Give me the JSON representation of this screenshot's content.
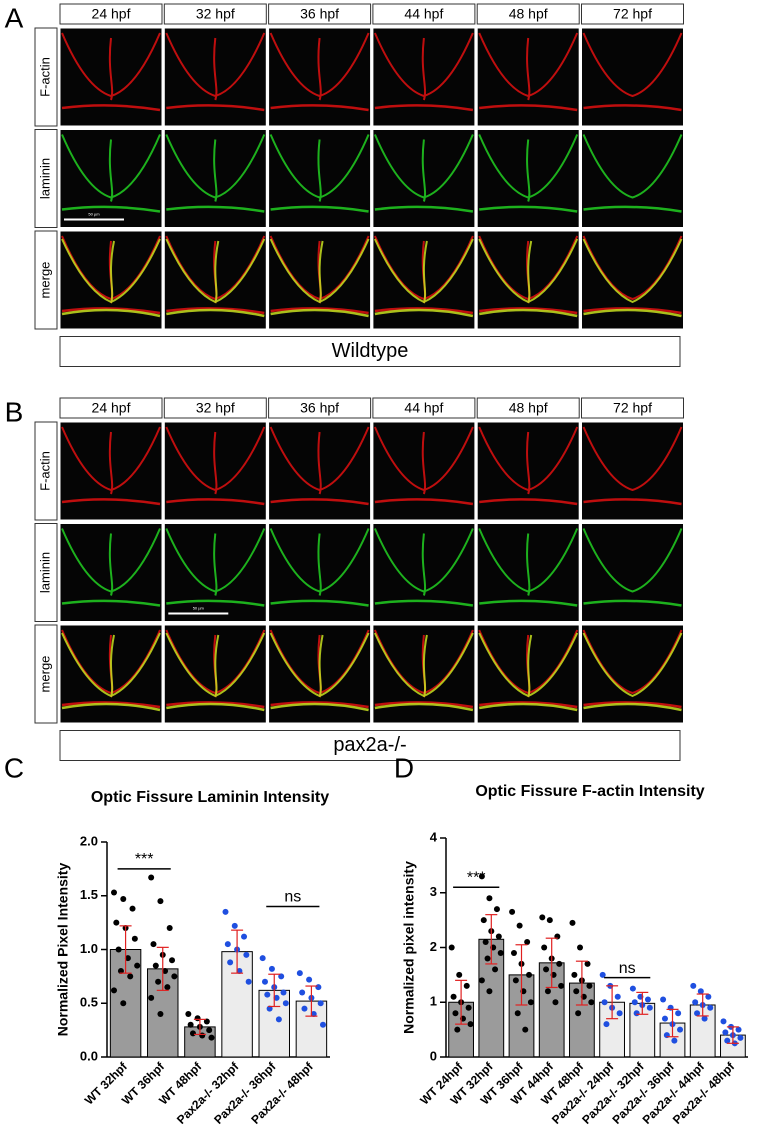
{
  "panels": [
    {
      "label": "A",
      "timepoints": [
        "24 hpf",
        "32 hpf",
        "36 hpf",
        "44 hpf",
        "48 hpf",
        "72 hpf"
      ],
      "rows": [
        "F-actin",
        "laminin",
        "merge"
      ],
      "caption": "Wildtype",
      "scale_bar": "50 µm"
    },
    {
      "label": "B",
      "timepoints": [
        "24 hpf",
        "32 hpf",
        "36 hpf",
        "44 hpf",
        "48 hpf",
        "72 hpf"
      ],
      "rows": [
        "F-actin",
        "laminin",
        "merge"
      ],
      "caption": "pax2a-/-",
      "scale_bar": "50 µm"
    }
  ],
  "chart_data": [
    {
      "type": "bar",
      "label": "C",
      "title": "Optic Fissure Laminin Intensity",
      "ylabel": "Normalized Pixel Intensity",
      "categories": [
        "WT 32hpf",
        "WT 36hpf",
        "WT 48hpf",
        "Pax2a-/- 32hpf",
        "Pax2a-/- 36hpf",
        "Pax2a-/- 48hpf"
      ],
      "values": [
        1.0,
        0.82,
        0.28,
        0.98,
        0.62,
        0.52
      ],
      "errors": [
        0.22,
        0.2,
        0.07,
        0.2,
        0.15,
        0.14
      ],
      "bar_colors": [
        "#9b9b9b",
        "#9b9b9b",
        "#9b9b9b",
        "#ececec",
        "#ececec",
        "#ececec"
      ],
      "point_colors": [
        "#000000",
        "#000000",
        "#000000",
        "#1f4fe0",
        "#1f4fe0",
        "#1f4fe0"
      ],
      "error_color": "#e02020",
      "points": [
        [
          1.53,
          1.47,
          1.38,
          1.25,
          1.2,
          1.1,
          1.0,
          0.92,
          0.85,
          0.8,
          0.75,
          0.62,
          0.5
        ],
        [
          1.67,
          1.45,
          1.2,
          1.05,
          0.95,
          0.9,
          0.85,
          0.8,
          0.75,
          0.7,
          0.65,
          0.55,
          0.4
        ],
        [
          0.4,
          0.36,
          0.33,
          0.3,
          0.28,
          0.25,
          0.22,
          0.2,
          0.18
        ],
        [
          1.35,
          1.22,
          1.12,
          1.05,
          1.0,
          0.95,
          0.88,
          0.8,
          0.7
        ],
        [
          0.92,
          0.82,
          0.75,
          0.7,
          0.65,
          0.6,
          0.58,
          0.55,
          0.5,
          0.45,
          0.35
        ],
        [
          0.78,
          0.72,
          0.65,
          0.6,
          0.55,
          0.5,
          0.45,
          0.4,
          0.3
        ]
      ],
      "annotations": [
        "***",
        "ns"
      ],
      "ylim": [
        0,
        2.0
      ],
      "yticks": [
        {
          "value": 0,
          "label": "0.0"
        },
        {
          "value": 0.5,
          "label": "0.5"
        },
        {
          "value": 1.0,
          "label": "1.0"
        },
        {
          "value": 1.5,
          "label": "1.5"
        },
        {
          "value": 2.0,
          "label": "2.0"
        }
      ]
    },
    {
      "type": "bar",
      "label": "D",
      "title": "Optic Fissure F-actin Intensity",
      "ylabel": "Normalized pixel intensity",
      "categories": [
        "WT 24hpf",
        "WT 32hpf",
        "WT 36hpf",
        "WT 44hpf",
        "WT 48hpf",
        "Pax2a-/- 24hpf",
        "Pax2a-/- 32hpf",
        "Pax2a-/- 36hpf",
        "Pax2a-/- 44hpf",
        "Pax2a-/- 48hpf"
      ],
      "values": [
        1.0,
        2.15,
        1.5,
        1.72,
        1.35,
        1.0,
        0.98,
        0.62,
        0.95,
        0.4
      ],
      "errors": [
        0.4,
        0.45,
        0.55,
        0.45,
        0.4,
        0.3,
        0.2,
        0.25,
        0.2,
        0.15
      ],
      "bar_colors": [
        "#9b9b9b",
        "#9b9b9b",
        "#9b9b9b",
        "#9b9b9b",
        "#9b9b9b",
        "#ececec",
        "#ececec",
        "#ececec",
        "#ececec",
        "#ececec"
      ],
      "point_colors": [
        "#000000",
        "#000000",
        "#000000",
        "#000000",
        "#000000",
        "#1f4fe0",
        "#1f4fe0",
        "#1f4fe0",
        "#1f4fe0",
        "#1f4fe0"
      ],
      "error_color": "#e02020",
      "points": [
        [
          2.0,
          1.5,
          1.3,
          1.1,
          1.0,
          0.9,
          0.8,
          0.7,
          0.6,
          0.5
        ],
        [
          3.3,
          2.9,
          2.7,
          2.5,
          2.3,
          2.2,
          2.1,
          2.0,
          1.9,
          1.8,
          1.6,
          1.4,
          1.2
        ],
        [
          2.65,
          2.4,
          2.1,
          1.9,
          1.7,
          1.5,
          1.4,
          1.2,
          1.0,
          0.8,
          0.5
        ],
        [
          2.55,
          2.5,
          2.2,
          2.0,
          1.8,
          1.7,
          1.6,
          1.5,
          1.3,
          1.2,
          1.0
        ],
        [
          2.45,
          2.0,
          1.7,
          1.5,
          1.4,
          1.3,
          1.2,
          1.1,
          1.0,
          0.8
        ],
        [
          1.5,
          1.3,
          1.1,
          1.0,
          0.9,
          0.8,
          0.6
        ],
        [
          1.25,
          1.1,
          1.05,
          1.0,
          0.95,
          0.9,
          0.8
        ],
        [
          1.05,
          0.9,
          0.8,
          0.7,
          0.6,
          0.5,
          0.4,
          0.3
        ],
        [
          1.3,
          1.2,
          1.1,
          1.0,
          0.95,
          0.9,
          0.8,
          0.7
        ],
        [
          0.65,
          0.55,
          0.5,
          0.45,
          0.4,
          0.35,
          0.3,
          0.25
        ]
      ],
      "annotations": [
        "***",
        "ns"
      ],
      "ylim": [
        0,
        4
      ],
      "yticks": [
        0,
        1,
        2,
        3,
        4
      ]
    }
  ]
}
